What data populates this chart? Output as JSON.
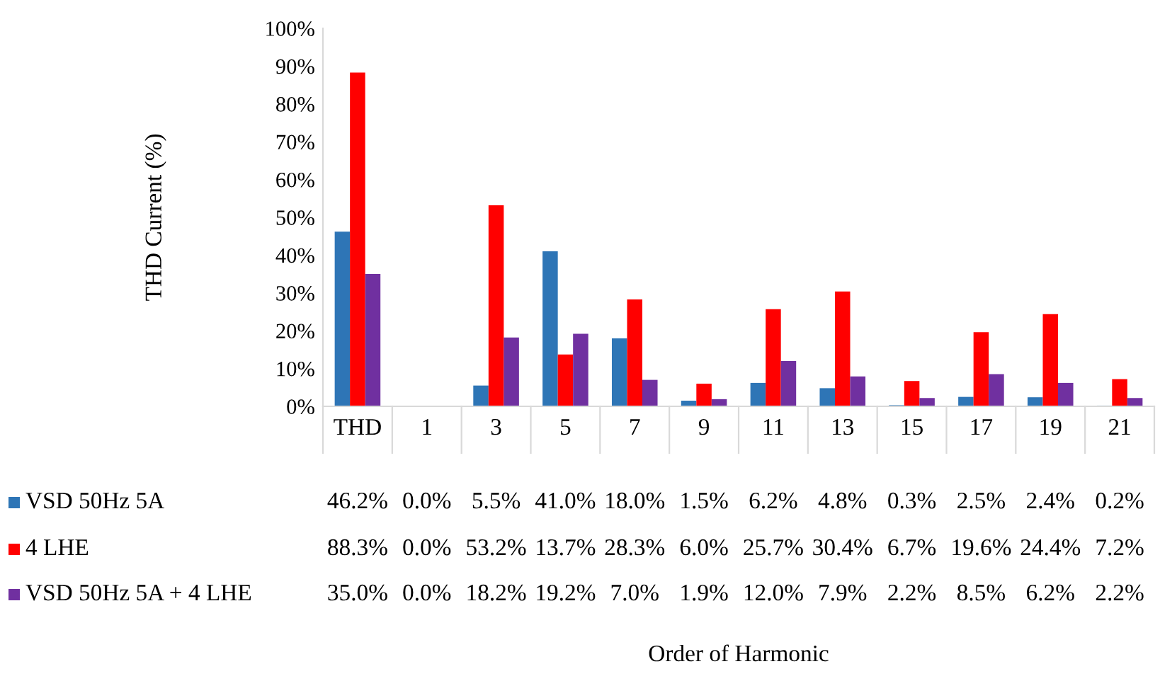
{
  "chart_data": {
    "type": "bar",
    "ylabel": "THD Current (%)",
    "annotations": [
      "Order of Harmonic"
    ],
    "categories": [
      "THD",
      "1",
      "3",
      "5",
      "7",
      "9",
      "11",
      "13",
      "15",
      "17",
      "19",
      "21"
    ],
    "series": [
      {
        "name": "VSD 50Hz 5A",
        "color": "#2e75b6",
        "values": [
          46.2,
          0.0,
          5.5,
          41.0,
          18.0,
          1.5,
          6.2,
          4.8,
          0.3,
          2.5,
          2.4,
          0.2
        ],
        "value_labels": [
          "46.2%",
          "0.0%",
          "5.5%",
          "41.0%",
          "18.0%",
          "1.5%",
          "6.2%",
          "4.8%",
          "0.3%",
          "2.5%",
          "2.4%",
          "0.2%"
        ]
      },
      {
        "name": "4 LHE",
        "color": "#ff0000",
        "values": [
          88.3,
          0.0,
          53.2,
          13.7,
          28.3,
          6.0,
          25.7,
          30.4,
          6.7,
          19.6,
          24.4,
          7.2
        ],
        "value_labels": [
          "88.3%",
          "0.0%",
          "53.2%",
          "13.7%",
          "28.3%",
          "6.0%",
          "25.7%",
          "30.4%",
          "6.7%",
          "19.6%",
          "24.4%",
          "7.2%"
        ]
      },
      {
        "name": "VSD 50Hz 5A + 4 LHE",
        "color": "#7030a0",
        "values": [
          35.0,
          0.0,
          18.2,
          19.2,
          7.0,
          1.9,
          12.0,
          7.9,
          2.2,
          8.5,
          6.2,
          2.2
        ],
        "value_labels": [
          "35.0%",
          "0.0%",
          "18.2%",
          "19.2%",
          "7.0%",
          "1.9%",
          "12.0%",
          "7.9%",
          "2.2%",
          "8.5%",
          "6.2%",
          "2.2%"
        ]
      }
    ],
    "ylim": [
      0,
      100
    ],
    "yticks": [
      {
        "value": 0,
        "label": "0%"
      },
      {
        "value": 10,
        "label": "10%"
      },
      {
        "value": 20,
        "label": "20%"
      },
      {
        "value": 30,
        "label": "30%"
      },
      {
        "value": 40,
        "label": "40%"
      },
      {
        "value": 50,
        "label": "50%"
      },
      {
        "value": 60,
        "label": "60%"
      },
      {
        "value": 70,
        "label": "70%"
      },
      {
        "value": 80,
        "label": "80%"
      },
      {
        "value": 90,
        "label": "90%"
      },
      {
        "value": 100,
        "label": "100%"
      }
    ],
    "grid": false,
    "legend": "bottom left"
  }
}
